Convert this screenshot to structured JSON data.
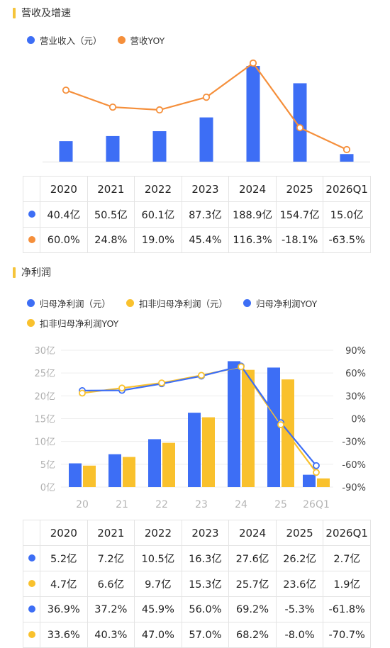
{
  "colors": {
    "blue": "#3D6EF5",
    "orange": "#F58F3B",
    "yellow": "#F9C12D",
    "accent_bar": "#F5C43A"
  },
  "revenue": {
    "title": "营收及增速",
    "legend": [
      {
        "label": "营业收入（元）",
        "color": "#3D6EF5"
      },
      {
        "label": "营收YOY",
        "color": "#F58F3B"
      }
    ],
    "chart_data": {
      "type": "bar",
      "categories": [
        "2020",
        "2021",
        "2022",
        "2023",
        "2024",
        "2025",
        "2026Q1"
      ],
      "series": [
        {
          "name": "营业收入（元）",
          "type": "bar",
          "values": [
            40.4,
            50.5,
            60.1,
            87.3,
            188.9,
            154.7,
            15.0
          ]
        },
        {
          "name": "营收YOY",
          "type": "line",
          "values": [
            60.0,
            24.8,
            19.0,
            45.4,
            116.3,
            -18.1,
            -63.5
          ]
        }
      ]
    },
    "table": {
      "headers": [
        "2020",
        "2021",
        "2022",
        "2023",
        "2024",
        "2025",
        "2026Q1"
      ],
      "rows": [
        {
          "color": "#3D6EF5",
          "cells": [
            "40.4亿",
            "50.5亿",
            "60.1亿",
            "87.3亿",
            "188.9亿",
            "154.7亿",
            "15.0亿"
          ]
        },
        {
          "color": "#F58F3B",
          "cells": [
            "60.0%",
            "24.8%",
            "19.0%",
            "45.4%",
            "116.3%",
            "-18.1%",
            "-63.5%"
          ]
        }
      ]
    }
  },
  "profit": {
    "title": "净利润",
    "legend": [
      {
        "label": "归母净利润（元）",
        "color": "#3D6EF5"
      },
      {
        "label": "扣非归母净利润（元）",
        "color": "#F9C12D"
      },
      {
        "label": "归母净利润YOY",
        "color": "#3D6EF5"
      },
      {
        "label": "扣非归母净利润YOY",
        "color": "#F9C12D"
      }
    ],
    "chart_data": {
      "type": "bar",
      "categories": [
        "20",
        "21",
        "22",
        "23",
        "24",
        "25",
        "26Q1"
      ],
      "y_left": {
        "ticks": [
          "30亿",
          "25亿",
          "20亿",
          "15亿",
          "10亿",
          "5亿",
          "0亿"
        ],
        "range": [
          0,
          30
        ]
      },
      "y_right": {
        "ticks": [
          "90%",
          "60%",
          "30%",
          "0%",
          "-30%",
          "-60%",
          "-90%"
        ],
        "range": [
          -90,
          90
        ]
      },
      "series": [
        {
          "name": "归母净利润（元）",
          "type": "bar",
          "values": [
            5.2,
            7.2,
            10.5,
            16.3,
            27.6,
            26.2,
            2.7
          ]
        },
        {
          "name": "扣非归母净利润（元）",
          "type": "bar",
          "values": [
            4.7,
            6.6,
            9.7,
            15.3,
            25.7,
            23.6,
            1.9
          ]
        },
        {
          "name": "归母净利润YOY",
          "type": "line",
          "values": [
            36.9,
            37.2,
            45.9,
            56.0,
            69.2,
            -5.3,
            -61.8
          ]
        },
        {
          "name": "扣非归母净利润YOY",
          "type": "line",
          "values": [
            33.6,
            40.3,
            47.0,
            57.0,
            68.2,
            -8.0,
            -70.7
          ]
        }
      ]
    },
    "table": {
      "headers": [
        "2020",
        "2021",
        "2022",
        "2023",
        "2024",
        "2025",
        "2026Q1"
      ],
      "rows": [
        {
          "color": "#3D6EF5",
          "cells": [
            "5.2亿",
            "7.2亿",
            "10.5亿",
            "16.3亿",
            "27.6亿",
            "26.2亿",
            "2.7亿"
          ]
        },
        {
          "color": "#F9C12D",
          "cells": [
            "4.7亿",
            "6.6亿",
            "9.7亿",
            "15.3亿",
            "25.7亿",
            "23.6亿",
            "1.9亿"
          ]
        },
        {
          "color": "#3D6EF5",
          "cells": [
            "36.9%",
            "37.2%",
            "45.9%",
            "56.0%",
            "69.2%",
            "-5.3%",
            "-61.8%"
          ]
        },
        {
          "color": "#F9C12D",
          "cells": [
            "33.6%",
            "40.3%",
            "47.0%",
            "57.0%",
            "68.2%",
            "-8.0%",
            "-70.7%"
          ]
        }
      ]
    }
  }
}
